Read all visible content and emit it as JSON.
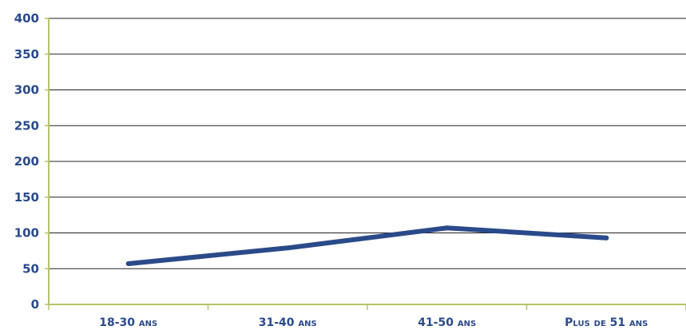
{
  "chart_data": {
    "type": "line",
    "title": "",
    "xlabel": "",
    "ylabel": "",
    "categories": [
      "18-30 ans",
      "31-40 ans",
      "41-50 ans",
      "Plus de 51 ans"
    ],
    "series": [
      {
        "values": [
          57,
          79,
          107,
          93
        ]
      }
    ],
    "ylim": [
      0,
      400
    ],
    "yticks": [
      0,
      50,
      100,
      150,
      200,
      250,
      300,
      350,
      400
    ],
    "ytick_labels": [
      "0",
      "50",
      "100",
      "150",
      "200",
      "250",
      "300",
      "350",
      "400"
    ],
    "grid": true,
    "colors": {
      "line": "#2a4a8a",
      "axis": "#b5c46a",
      "grid": "#222222",
      "text": "#2a4a8a"
    }
  }
}
